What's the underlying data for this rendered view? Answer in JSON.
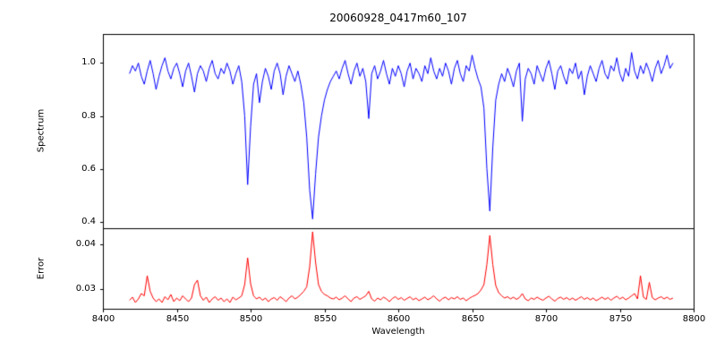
{
  "chart_data": {
    "type": "line",
    "title": "20060928_0417m60_107",
    "xlabel": "Wavelength",
    "background": "#ffffff",
    "axis_color": "#000000",
    "x_start": 8418,
    "x_step": 2,
    "xlim": [
      8400,
      8800
    ],
    "xticks": [
      8400,
      8450,
      8500,
      8550,
      8600,
      8650,
      8700,
      8750,
      8800
    ],
    "xtick_labels": [
      "8400",
      "8450",
      "8500",
      "8550",
      "8600",
      "8650",
      "8700",
      "8750",
      "8800"
    ],
    "absorption_line_centers": [
      8498,
      8542,
      8662
    ],
    "panels": [
      {
        "name": "spectrum",
        "ylabel": "Spectrum",
        "color": "#0000ff",
        "ylim": [
          0.375,
          1.11
        ],
        "yticks": [
          0.4,
          0.6,
          0.8,
          1.0
        ],
        "ytick_labels": [
          "0.4",
          "0.6",
          "0.8",
          "1.0"
        ],
        "values": [
          0.96,
          0.99,
          0.97,
          1.0,
          0.95,
          0.92,
          0.97,
          1.01,
          0.96,
          0.9,
          0.95,
          0.99,
          1.02,
          0.97,
          0.94,
          0.98,
          1.0,
          0.96,
          0.91,
          0.97,
          1.0,
          0.95,
          0.89,
          0.96,
          0.99,
          0.97,
          0.93,
          0.98,
          1.01,
          0.96,
          0.94,
          0.98,
          0.96,
          1.0,
          0.97,
          0.92,
          0.96,
          0.99,
          0.93,
          0.8,
          0.54,
          0.76,
          0.92,
          0.96,
          0.85,
          0.93,
          0.98,
          0.95,
          0.9,
          0.97,
          1.0,
          0.96,
          0.88,
          0.95,
          0.99,
          0.96,
          0.93,
          0.97,
          0.92,
          0.85,
          0.72,
          0.52,
          0.41,
          0.58,
          0.72,
          0.8,
          0.86,
          0.9,
          0.93,
          0.95,
          0.97,
          0.94,
          0.98,
          1.01,
          0.96,
          0.92,
          0.97,
          1.0,
          0.95,
          0.98,
          0.93,
          0.79,
          0.96,
          0.99,
          0.94,
          0.97,
          1.01,
          0.96,
          0.92,
          0.98,
          0.95,
          0.99,
          0.96,
          0.91,
          0.97,
          1.0,
          0.94,
          0.98,
          0.96,
          0.93,
          0.99,
          0.96,
          1.02,
          0.97,
          0.94,
          0.98,
          0.95,
          1.0,
          0.97,
          0.92,
          0.98,
          1.01,
          0.96,
          0.93,
          0.99,
          0.97,
          1.03,
          0.98,
          0.94,
          0.91,
          0.83,
          0.6,
          0.44,
          0.68,
          0.86,
          0.92,
          0.96,
          0.93,
          0.98,
          0.95,
          0.91,
          0.97,
          1.0,
          0.78,
          0.94,
          0.98,
          0.96,
          0.92,
          0.99,
          0.96,
          0.93,
          0.98,
          1.01,
          0.96,
          0.9,
          0.97,
          0.99,
          0.95,
          0.92,
          0.98,
          0.96,
          1.0,
          0.94,
          0.97,
          0.88,
          0.95,
          0.99,
          0.96,
          0.93,
          0.98,
          1.01,
          0.96,
          0.94,
          0.99,
          0.97,
          1.02,
          0.96,
          0.93,
          0.98,
          0.95,
          1.04,
          0.97,
          0.94,
          0.99,
          0.96,
          1.0,
          0.97,
          0.93,
          0.98,
          1.01,
          0.96,
          0.99,
          1.03,
          0.98,
          1.0
        ]
      },
      {
        "name": "error",
        "ylabel": "Error",
        "color": "#ff0000",
        "ylim": [
          0.0256,
          0.0436
        ],
        "yticks": [
          0.03,
          0.04
        ],
        "ytick_labels": [
          "0.03",
          "0.04"
        ],
        "values": [
          0.0275,
          0.0282,
          0.027,
          0.0278,
          0.029,
          0.0285,
          0.033,
          0.0295,
          0.028,
          0.0272,
          0.0278,
          0.027,
          0.0283,
          0.0276,
          0.0288,
          0.0272,
          0.028,
          0.0274,
          0.0285,
          0.0278,
          0.0272,
          0.028,
          0.031,
          0.032,
          0.0285,
          0.0275,
          0.0282,
          0.027,
          0.0278,
          0.0283,
          0.0275,
          0.028,
          0.0272,
          0.0278,
          0.027,
          0.0282,
          0.0276,
          0.028,
          0.0285,
          0.031,
          0.037,
          0.0312,
          0.0285,
          0.0278,
          0.0282,
          0.0275,
          0.028,
          0.0272,
          0.0278,
          0.0281,
          0.0275,
          0.0283,
          0.0278,
          0.0272,
          0.028,
          0.0285,
          0.0278,
          0.0282,
          0.0288,
          0.0295,
          0.0305,
          0.035,
          0.0428,
          0.036,
          0.031,
          0.0295,
          0.0288,
          0.0285,
          0.028,
          0.0278,
          0.0282,
          0.0276,
          0.028,
          0.0285,
          0.0278,
          0.0272,
          0.028,
          0.0283,
          0.0277,
          0.0281,
          0.0285,
          0.0295,
          0.0278,
          0.0273,
          0.028,
          0.0276,
          0.0282,
          0.0278,
          0.0272,
          0.0279,
          0.0283,
          0.0277,
          0.0281,
          0.0275,
          0.0279,
          0.0283,
          0.0276,
          0.028,
          0.0274,
          0.0278,
          0.0282,
          0.0276,
          0.028,
          0.0285,
          0.0278,
          0.0273,
          0.0279,
          0.0282,
          0.0276,
          0.0281,
          0.0278,
          0.0283,
          0.0277,
          0.028,
          0.0274,
          0.0279,
          0.0283,
          0.0286,
          0.029,
          0.0298,
          0.031,
          0.0355,
          0.042,
          0.0355,
          0.0308,
          0.0292,
          0.0285,
          0.028,
          0.0283,
          0.0278,
          0.0282,
          0.0277,
          0.0281,
          0.029,
          0.0278,
          0.0274,
          0.028,
          0.0277,
          0.0282,
          0.0278,
          0.0275,
          0.028,
          0.0284,
          0.0278,
          0.0273,
          0.0279,
          0.0282,
          0.0277,
          0.0281,
          0.0276,
          0.028,
          0.0275,
          0.0279,
          0.0283,
          0.0277,
          0.0281,
          0.0276,
          0.028,
          0.0274,
          0.0278,
          0.0282,
          0.0277,
          0.0281,
          0.0275,
          0.028,
          0.0284,
          0.0278,
          0.0282,
          0.0276,
          0.028,
          0.0285,
          0.029,
          0.0278,
          0.033,
          0.0282,
          0.0277,
          0.0315,
          0.0281,
          0.0276,
          0.028,
          0.0283,
          0.0278,
          0.0282,
          0.0277,
          0.028
        ]
      }
    ]
  }
}
